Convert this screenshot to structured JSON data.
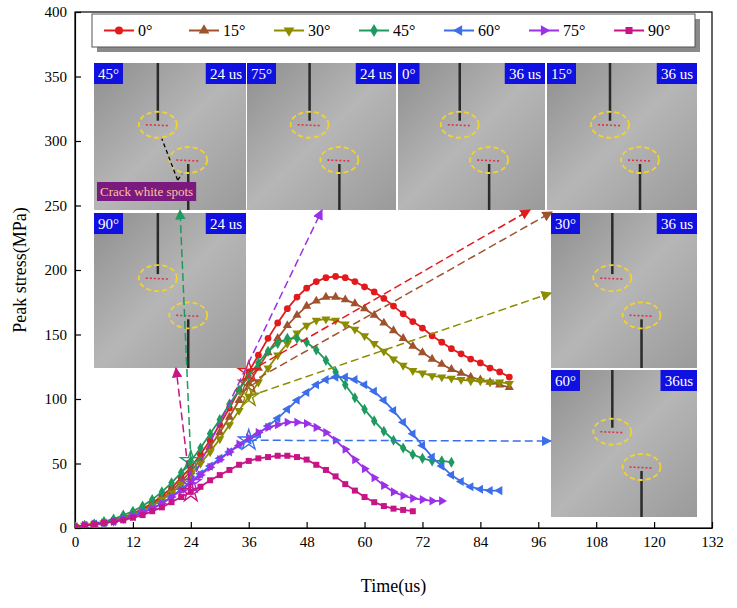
{
  "chart_data": {
    "type": "line",
    "x_label": "Time(us)",
    "y_label": "Peak stress(MPa)",
    "xlim": [
      0,
      132
    ],
    "xticks": [
      0,
      12,
      24,
      36,
      48,
      60,
      72,
      84,
      96,
      108,
      120,
      132
    ],
    "ylim": [
      0,
      400
    ],
    "yticks": [
      0,
      50,
      100,
      150,
      200,
      250,
      300,
      350,
      400
    ],
    "legend": "top",
    "x": [
      0,
      2,
      4,
      6,
      8,
      10,
      12,
      14,
      16,
      18,
      20,
      22,
      24,
      26,
      28,
      30,
      32,
      34,
      36,
      38,
      40,
      42,
      44,
      46,
      48,
      50,
      52,
      54,
      56,
      58,
      60,
      62,
      64,
      66,
      68,
      70,
      72,
      74,
      76,
      78,
      80,
      82,
      84,
      86,
      88,
      90
    ],
    "series": [
      {
        "name": "0°",
        "color": "#e31a1c",
        "marker": "circle",
        "values": [
          1,
          2,
          3,
          4,
          6,
          8,
          11,
          15,
          19,
          25,
          31,
          39,
          47,
          57,
          68,
          80,
          93,
          107,
          121,
          134,
          147,
          159,
          170,
          179,
          186,
          191,
          194,
          195,
          194,
          191,
          187,
          183,
          178,
          172,
          166,
          160,
          155,
          149,
          144,
          139,
          135,
          131,
          128,
          124,
          121,
          117
        ]
      },
      {
        "name": "15°",
        "color": "#a0522d",
        "marker": "triangle",
        "values": [
          1,
          2,
          3,
          4,
          6,
          8,
          11,
          14,
          18,
          23,
          29,
          36,
          44,
          53,
          63,
          74,
          86,
          99,
          112,
          124,
          136,
          147,
          157,
          165,
          172,
          176,
          179,
          179,
          177,
          174,
          170,
          165,
          159,
          153,
          147,
          141,
          136,
          131,
          127,
          123,
          120,
          117,
          115,
          113,
          111,
          109
        ]
      },
      {
        "name": "30°",
        "color": "#8c8c00",
        "marker": "triangle-down",
        "values": [
          1,
          2,
          3,
          4,
          5,
          7,
          10,
          13,
          17,
          22,
          27,
          34,
          41,
          50,
          59,
          69,
          80,
          91,
          102,
          113,
          124,
          134,
          143,
          151,
          157,
          161,
          162,
          161,
          158,
          154,
          149,
          143,
          137,
          131,
          126,
          122,
          120,
          118,
          117,
          116,
          115,
          114,
          114,
          113,
          113,
          112
        ]
      },
      {
        "name": "45°",
        "color": "#1f9a5f",
        "marker": "diamond",
        "values": [
          1,
          2,
          3,
          5,
          7,
          10,
          13,
          17,
          22,
          28,
          35,
          43,
          52,
          62,
          73,
          84,
          96,
          107,
          118,
          128,
          137,
          143,
          147,
          147,
          144,
          138,
          130,
          121,
          111,
          101,
          92,
          83,
          75,
          68,
          62,
          57,
          54,
          52,
          52,
          51,
          null,
          null,
          null,
          null,
          null,
          null
        ]
      },
      {
        "name": "60°",
        "color": "#3b6ee8",
        "marker": "triangle-left",
        "values": [
          1,
          2,
          3,
          4,
          5,
          7,
          9,
          12,
          15,
          19,
          24,
          30,
          36,
          42,
          48,
          54,
          59,
          64,
          68,
          73,
          79,
          85,
          92,
          99,
          105,
          111,
          115,
          117,
          117,
          115,
          111,
          106,
          99,
          91,
          82,
          73,
          64,
          55,
          48,
          41,
          36,
          32,
          30,
          29,
          29,
          null
        ]
      },
      {
        "name": "75°",
        "color": "#9b30e8",
        "marker": "triangle-right",
        "values": [
          1,
          2,
          3,
          4,
          5,
          7,
          9,
          12,
          15,
          19,
          24,
          29,
          35,
          41,
          47,
          53,
          59,
          65,
          70,
          74,
          78,
          80,
          82,
          82,
          81,
          78,
          74,
          68,
          61,
          53,
          46,
          39,
          33,
          28,
          25,
          23,
          22,
          21,
          21,
          null,
          null,
          null,
          null,
          null,
          null,
          null
        ]
      },
      {
        "name": "90°",
        "color": "#c71585",
        "marker": "square",
        "values": [
          1,
          2,
          3,
          4,
          5,
          6,
          8,
          10,
          13,
          16,
          20,
          24,
          28,
          32,
          37,
          41,
          45,
          49,
          52,
          54,
          55,
          56,
          56,
          55,
          53,
          49,
          45,
          40,
          34,
          29,
          24,
          20,
          17,
          15,
          14,
          13,
          null,
          null,
          null,
          null,
          null,
          null,
          null,
          null,
          null,
          null
        ]
      }
    ],
    "annotations": [
      {
        "text": "45°",
        "time": "24 us",
        "x": 24,
        "note": "Crack white spots"
      },
      {
        "text": "75°",
        "time": "24 us",
        "x": 24
      },
      {
        "text": "0°",
        "time": "36 us",
        "x": 36
      },
      {
        "text": "15°",
        "time": "36 us",
        "x": 36
      },
      {
        "text": "90°",
        "time": "24 us",
        "x": 24
      },
      {
        "text": "30°",
        "time": "36 us",
        "x": 36
      },
      {
        "text": "60°",
        "time": "36us",
        "x": 36
      }
    ]
  }
}
